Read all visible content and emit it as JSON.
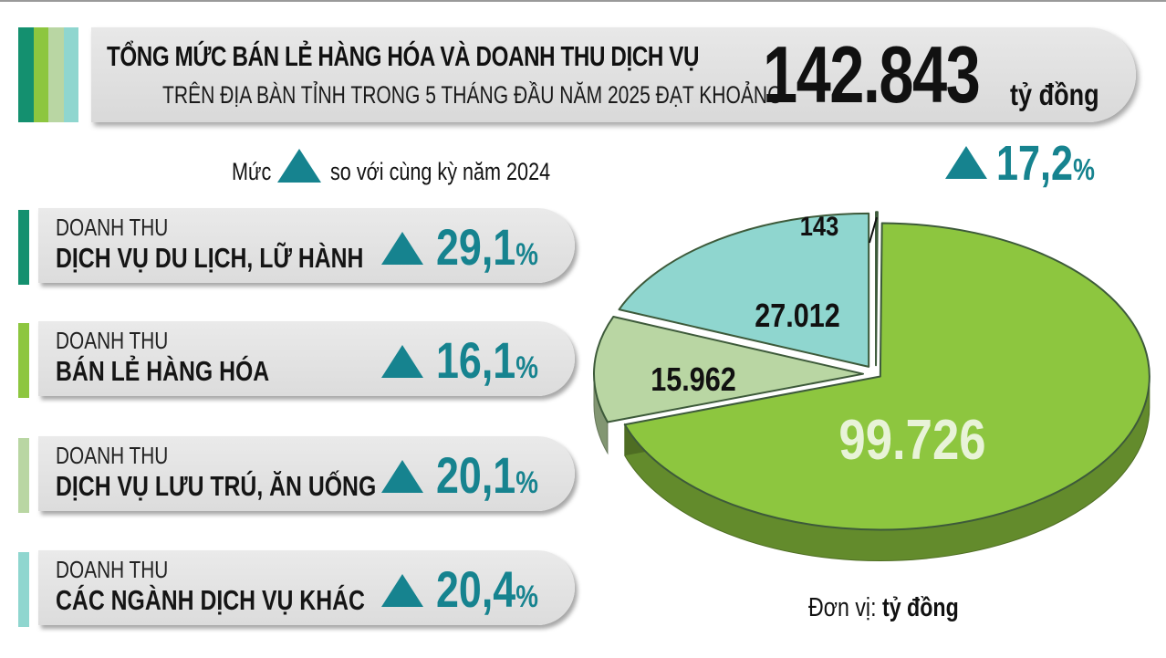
{
  "header": {
    "title_line1": "TỔNG MỨC BÁN LẺ HÀNG HÓA VÀ DOANH THU DỊCH VỤ",
    "title_line2": "TRÊN ĐỊA BÀN TỈNH TRONG 5 THÁNG ĐẦU NĂM 2025 ĐẠT KHOẢNG",
    "total_value": "142.843",
    "total_unit": "tỷ đồng",
    "growth_value": "17,2",
    "growth_unit": "%",
    "stripe_colors": [
      "#14906f",
      "#8dc63f",
      "#b9d6a3",
      "#8fd6cf"
    ]
  },
  "legend": {
    "prefix": "Mức",
    "suffix": "so với cùng kỳ năm 2024",
    "icon": "up-triangle-icon",
    "icon_color": "#16838f"
  },
  "categories": [
    {
      "kicker": "DOANH THU",
      "title": "DỊCH VỤ DU LỊCH, LỮ HÀNH",
      "growth": "29,1",
      "unit": "%",
      "color": "#14906f"
    },
    {
      "kicker": "DOANH THU",
      "title": "BÁN LẺ HÀNG HÓA",
      "growth": "16,1",
      "unit": "%",
      "color": "#8dc63f"
    },
    {
      "kicker": "DOANH THU",
      "title": "DỊCH VỤ LƯU TRÚ, ĂN UỐNG",
      "growth": "20,1",
      "unit": "%",
      "color": "#b9d6a3"
    },
    {
      "kicker": "DOANH THU",
      "title": "CÁC NGÀNH DỊCH VỤ KHÁC",
      "growth": "20,4",
      "unit": "%",
      "color": "#8fd6cf"
    }
  ],
  "chart_data": {
    "type": "pie",
    "categories": [
      "DỊCH VỤ DU LỊCH, LỮ HÀNH",
      "BÁN LẺ HÀNG HÓA",
      "DỊCH VỤ LƯU TRÚ, ĂN UỐNG",
      "CÁC NGÀNH DỊCH VỤ KHÁC"
    ],
    "values": [
      143,
      99726,
      15962,
      27012
    ],
    "labels": [
      "143",
      "99.726",
      "15.962",
      "27.012"
    ],
    "colors": [
      "#14906f",
      "#8dc63f",
      "#b9d6a3",
      "#8fd6cf"
    ],
    "unit_note_prefix": "Đơn vị:",
    "unit_note_value": "tỷ đồng"
  }
}
